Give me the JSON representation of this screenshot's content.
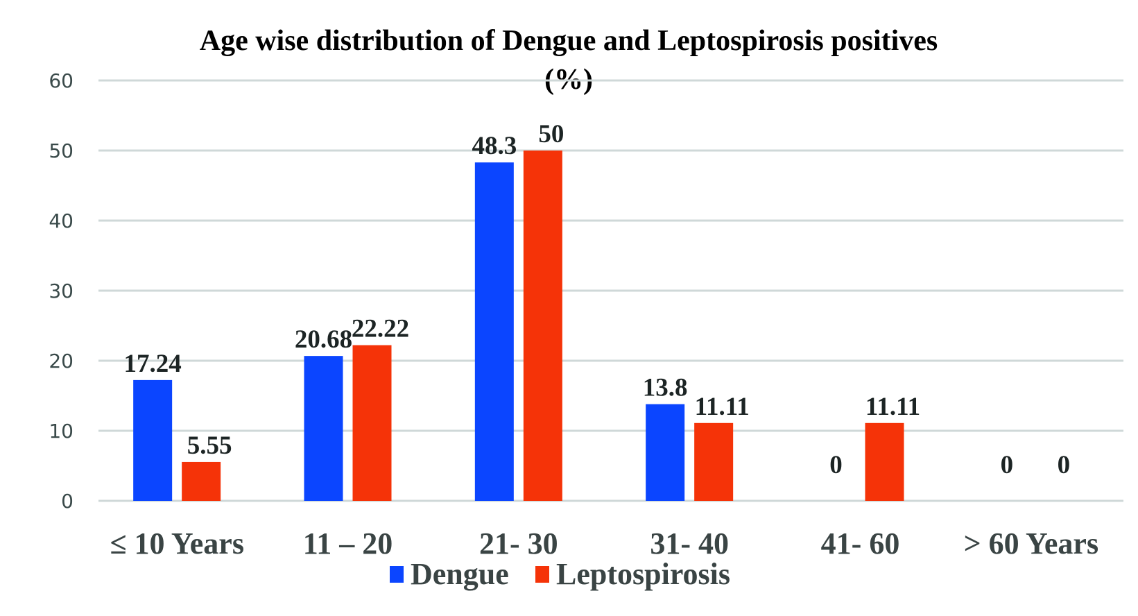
{
  "chart_data": {
    "type": "bar",
    "title": "Age wise distribution of Dengue and Leptospirosis positives",
    "title_line2": "(%)",
    "xlabel": "",
    "ylabel": "",
    "ylim": [
      0,
      60
    ],
    "yticks": [
      0,
      10,
      20,
      30,
      40,
      50,
      60
    ],
    "grid": true,
    "legend_position": "bottom",
    "categories": [
      "≤ 10 Years",
      "11 – 20",
      "21- 30",
      "31- 40",
      "41- 60",
      "> 60 Years"
    ],
    "series": [
      {
        "name": "Dengue",
        "color": "#0b45ff",
        "values": [
          17.24,
          20.68,
          48.3,
          13.8,
          0,
          0
        ],
        "labels": [
          "17.24",
          "20.68",
          "48.3",
          "13.8",
          "0",
          "0"
        ]
      },
      {
        "name": "Leptospirosis",
        "color": "#f53308",
        "values": [
          5.55,
          22.22,
          50,
          11.11,
          11.11,
          0
        ],
        "labels": [
          "5.55",
          "22.22",
          "50",
          "11.11",
          "11.11",
          "0"
        ]
      }
    ]
  }
}
